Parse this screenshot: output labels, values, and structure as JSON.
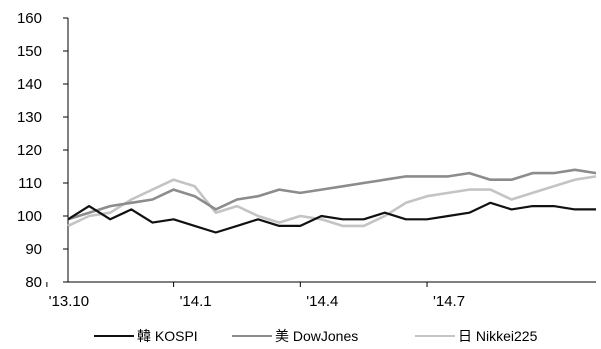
{
  "chart_data": {
    "type": "line",
    "title": "",
    "xlabel": "",
    "ylabel": "",
    "ylim": [
      80,
      160
    ],
    "yticks": [
      "80",
      "90",
      "100",
      "110",
      "120",
      "130",
      "140",
      "150",
      "160"
    ],
    "xticks": [
      {
        "label": "'13.10",
        "at": "2013-10"
      },
      {
        "label": "'14.1",
        "at": "2014-01"
      },
      {
        "label": "'14.4",
        "at": "2014-04"
      },
      {
        "label": "'14.7",
        "at": "2014-07"
      }
    ],
    "grid": false,
    "legend": "bottom",
    "x": [
      "2013-10",
      "2013-10",
      "2013-11",
      "2013-11",
      "2013-12",
      "2013-12",
      "2014-01",
      "2014-01",
      "2014-02",
      "2014-02",
      "2014-03",
      "2014-03",
      "2014-04",
      "2014-04",
      "2014-05",
      "2014-05",
      "2014-06",
      "2014-06",
      "2014-07",
      "2014-07",
      "2014-08",
      "2014-08",
      "2014-09",
      "2014-09",
      "2014-10",
      "2014-10"
    ],
    "series": [
      {
        "name": "韓 KOSPI",
        "color": "#111111",
        "values": [
          99,
          103,
          99,
          102,
          98,
          99,
          97,
          95,
          97,
          99,
          97,
          97,
          100,
          99,
          99,
          101,
          99,
          99,
          100,
          101,
          104,
          102,
          103,
          103,
          102,
          102
        ]
      },
      {
        "name": "美 DowJones",
        "color": "#8c8c8c",
        "values": [
          99,
          101,
          103,
          104,
          105,
          108,
          106,
          102,
          105,
          106,
          108,
          107,
          108,
          109,
          110,
          111,
          112,
          112,
          112,
          113,
          111,
          111,
          113,
          113,
          114,
          113
        ]
      },
      {
        "name": "日 Nikkei225",
        "color": "#c4c4c4",
        "values": [
          97,
          100,
          101,
          105,
          108,
          111,
          109,
          101,
          103,
          100,
          98,
          100,
          99,
          97,
          97,
          100,
          104,
          106,
          107,
          108,
          108,
          105,
          107,
          109,
          111,
          112
        ]
      }
    ]
  }
}
